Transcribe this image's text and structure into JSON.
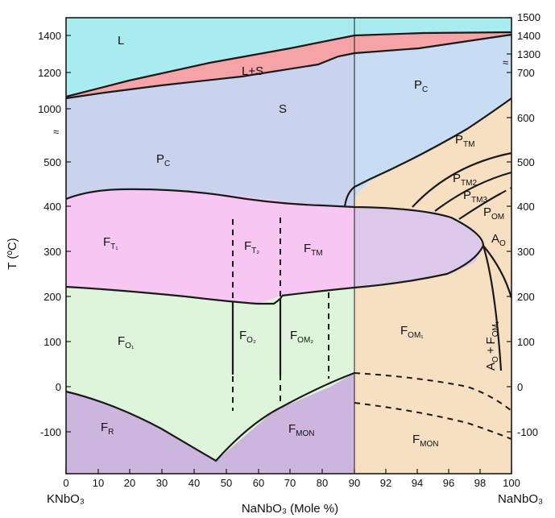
{
  "diagram": {
    "y_axis_title": "T (ºC)",
    "x_axis_title": "NaNbO₃ (Mole %)",
    "left_end_label": "KNbO₃",
    "right_end_label": "NaNbO₃",
    "left_x_ticks": [
      "0",
      "10",
      "20",
      "30",
      "40",
      "50",
      "60",
      "70",
      "80",
      "90"
    ],
    "right_x_ticks": [
      "92",
      "94",
      "96",
      "98",
      "100"
    ],
    "left_y_ticks": [
      "1400",
      "1200",
      "1000",
      "500",
      "400",
      "300",
      "200",
      "100",
      "0",
      "-100"
    ],
    "right_y_ticks": [
      "1500",
      "1400",
      "1300",
      "700",
      "600",
      "500",
      "400",
      "300",
      "200",
      "100",
      "0",
      "-100"
    ],
    "axis_break_symbol": "≈",
    "regions": {
      "L": "L",
      "L_S": "L+S",
      "S": "S",
      "Pc_left": {
        "main": "P",
        "sub": "C"
      },
      "Pc_right": {
        "main": "P",
        "sub": "C"
      },
      "FT1": {
        "main": "F",
        "sub": "T₁"
      },
      "FT2": {
        "main": "F",
        "sub": "T₂"
      },
      "FTM": {
        "main": "F",
        "sub": "TM"
      },
      "FO1": {
        "main": "F",
        "sub": "O₁"
      },
      "FO2": {
        "main": "F",
        "sub": "O₂"
      },
      "FOM2": {
        "main": "F",
        "sub": "OM₂"
      },
      "FOM1": {
        "main": "F",
        "sub": "OM₁"
      },
      "FR": {
        "main": "F",
        "sub": "R"
      },
      "FMON_left": {
        "main": "F",
        "sub": "MON"
      },
      "FMON_right": {
        "main": "F",
        "sub": "MON"
      },
      "PTM": {
        "main": "P",
        "sub": "TM"
      },
      "PTM2": {
        "main": "P",
        "sub": "TM2"
      },
      "PTM3": {
        "main": "P",
        "sub": "TM3"
      },
      "POM": {
        "main": "P",
        "sub": "OM"
      },
      "AO": {
        "main": "A",
        "sub": "O"
      },
      "AO_FOM1": {
        "a": "A",
        "a_sub": "O",
        "plus": "+",
        "f": "F",
        "f_sub": "OM₁"
      }
    },
    "colors": {
      "liquid": "#a8ecf0",
      "liquid_solid": "#f5a3a6",
      "solid_cubic": "#c9d3ee",
      "pc_right": "#c8dcf3",
      "tetragonal": "#f8c6f3",
      "orthorhombic": "#dff5db",
      "rhombohedral": "#cdb6de",
      "naNbO3_side": "#f7dfc2",
      "lens": "#dcc8e8",
      "line": "#1a1a1a"
    }
  }
}
